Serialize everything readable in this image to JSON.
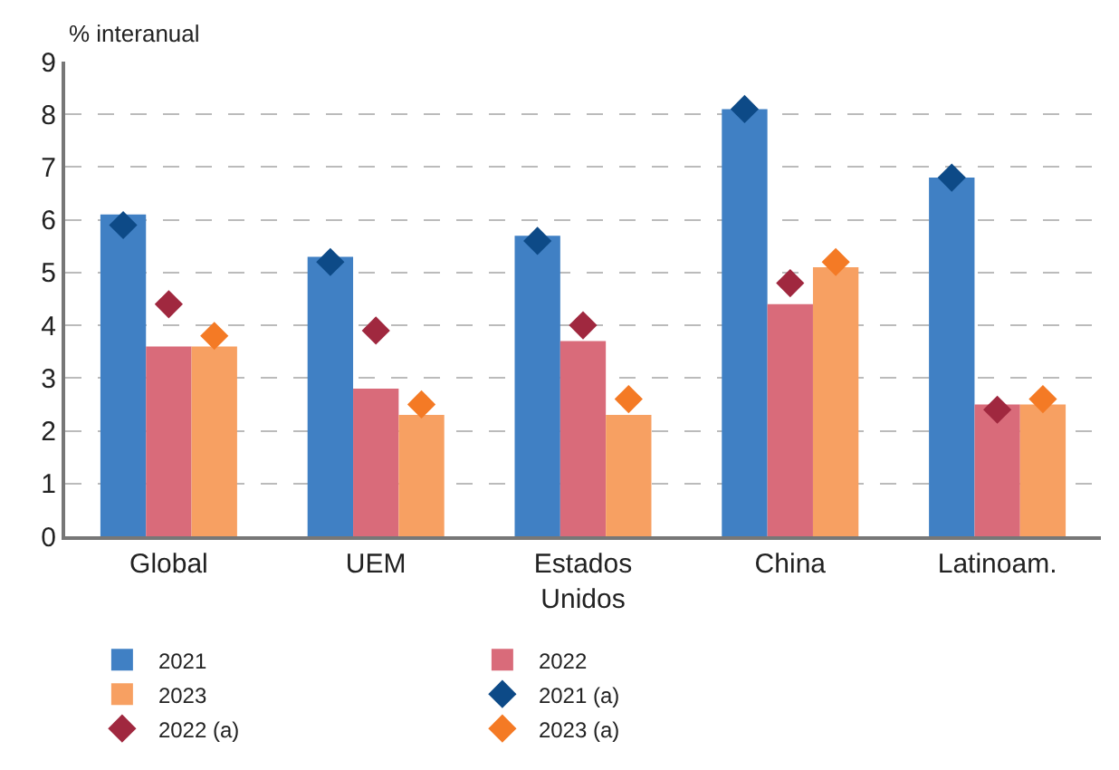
{
  "chart_data": {
    "type": "bar",
    "ylabel": "% interanual",
    "categories": [
      "Global",
      "UEM",
      "Estados Unidos",
      "China",
      "Latinoam."
    ],
    "ylim": [
      0,
      9
    ],
    "yticks": [
      0,
      1,
      2,
      3,
      4,
      5,
      6,
      7,
      8,
      9
    ],
    "grid": "y",
    "legend": "bottom",
    "marker": "diamond",
    "series": [
      {
        "name": "2021",
        "type": "bar",
        "color": "#4080c4",
        "values": [
          6.1,
          5.3,
          5.7,
          8.1,
          6.8
        ]
      },
      {
        "name": "2022",
        "type": "bar",
        "color": "#d96b7a",
        "values": [
          3.6,
          2.8,
          3.7,
          4.4,
          2.5
        ]
      },
      {
        "name": "2023",
        "type": "bar",
        "color": "#f7a062",
        "values": [
          3.6,
          2.3,
          2.3,
          5.1,
          2.5
        ]
      },
      {
        "name": "2021 (a)",
        "type": "scatter",
        "color": "#0d4a87",
        "values": [
          5.9,
          5.2,
          5.6,
          8.1,
          6.8
        ]
      },
      {
        "name": "2022 (a)",
        "type": "scatter",
        "color": "#a0283f",
        "values": [
          4.4,
          3.9,
          4.0,
          4.8,
          2.4
        ]
      },
      {
        "name": "2023 (a)",
        "type": "scatter",
        "color": "#f47a25",
        "values": [
          3.8,
          2.5,
          2.6,
          5.2,
          2.6
        ]
      }
    ]
  }
}
